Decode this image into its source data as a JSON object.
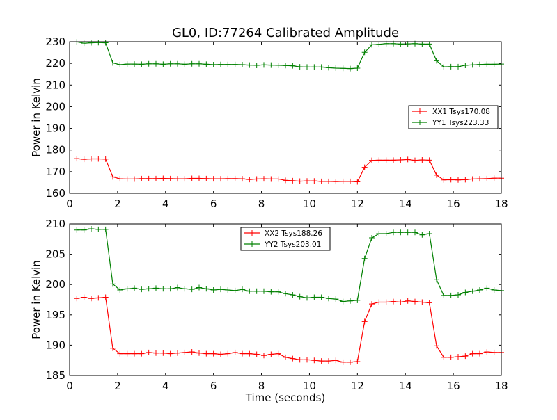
{
  "title": "GL0, ID:77264 Calibrated Amplitude",
  "colors": {
    "red": "#ff0000",
    "green": "#008000"
  },
  "chart_data": [
    {
      "type": "line",
      "ylabel": "Power in Kelvin",
      "xlabel": "",
      "xlim": [
        0,
        18
      ],
      "ylim": [
        160,
        230
      ],
      "xticks": [
        0,
        2,
        4,
        6,
        8,
        10,
        12,
        14,
        16,
        18
      ],
      "yticks": [
        160,
        170,
        180,
        190,
        200,
        210,
        220,
        230
      ],
      "grid": false,
      "legend": "right",
      "x": [
        0.3,
        0.6,
        0.9,
        1.2,
        1.5,
        1.8,
        2.1,
        2.4,
        2.7,
        3.0,
        3.3,
        3.6,
        3.9,
        4.2,
        4.5,
        4.8,
        5.1,
        5.4,
        5.7,
        6.0,
        6.3,
        6.6,
        6.9,
        7.2,
        7.5,
        7.8,
        8.1,
        8.4,
        8.7,
        9.0,
        9.3,
        9.6,
        9.9,
        10.2,
        10.5,
        10.8,
        11.1,
        11.4,
        11.7,
        12.0,
        12.3,
        12.6,
        12.9,
        13.2,
        13.5,
        13.8,
        14.1,
        14.4,
        14.7,
        15.0,
        15.3,
        15.6,
        15.9,
        16.2,
        16.5,
        16.8,
        17.1,
        17.4,
        17.7,
        18.0
      ],
      "series": [
        {
          "name": "XX1 Tsys170.08",
          "color": "#ff0000",
          "values": [
            176.0,
            175.7,
            175.9,
            175.9,
            175.8,
            167.6,
            166.7,
            166.6,
            166.6,
            166.8,
            166.8,
            166.8,
            166.9,
            166.8,
            166.7,
            166.7,
            166.9,
            166.9,
            166.8,
            166.7,
            166.7,
            166.8,
            166.8,
            166.7,
            166.4,
            166.6,
            166.7,
            166.6,
            166.6,
            166.0,
            165.8,
            165.6,
            165.7,
            165.7,
            165.5,
            165.5,
            165.4,
            165.5,
            165.5,
            165.3,
            172.0,
            175.2,
            175.3,
            175.3,
            175.3,
            175.4,
            175.6,
            175.2,
            175.4,
            175.3,
            168.4,
            166.2,
            166.3,
            166.2,
            166.3,
            166.6,
            166.7,
            166.8,
            167.0,
            167.0
          ]
        },
        {
          "name": "YY1 Tsys223.33",
          "color": "#008000",
          "values": [
            229.9,
            229.3,
            229.5,
            229.6,
            229.5,
            220.2,
            219.4,
            219.7,
            219.7,
            219.6,
            219.8,
            219.8,
            219.6,
            219.8,
            219.8,
            219.6,
            219.8,
            219.8,
            219.6,
            219.4,
            219.5,
            219.5,
            219.5,
            219.4,
            219.2,
            219.1,
            219.3,
            219.2,
            219.1,
            219.0,
            218.9,
            218.4,
            218.3,
            218.3,
            218.3,
            218.0,
            217.8,
            217.7,
            217.6,
            217.8,
            225.1,
            228.6,
            228.8,
            229.1,
            229.1,
            228.9,
            229.0,
            229.1,
            228.9,
            228.9,
            221.2,
            218.4,
            218.5,
            218.5,
            219.1,
            219.3,
            219.5,
            219.6,
            219.6,
            219.7
          ]
        }
      ]
    },
    {
      "type": "line",
      "ylabel": "Power in Kelvin",
      "xlabel": "Time (seconds)",
      "xlim": [
        0,
        18
      ],
      "ylim": [
        185,
        210
      ],
      "xticks": [
        0,
        2,
        4,
        6,
        8,
        10,
        12,
        14,
        16,
        18
      ],
      "yticks": [
        185,
        190,
        195,
        200,
        205,
        210
      ],
      "grid": false,
      "legend": "top-center",
      "x": [
        0.3,
        0.6,
        0.9,
        1.2,
        1.5,
        1.8,
        2.1,
        2.4,
        2.7,
        3.0,
        3.3,
        3.6,
        3.9,
        4.2,
        4.5,
        4.8,
        5.1,
        5.4,
        5.7,
        6.0,
        6.3,
        6.6,
        6.9,
        7.2,
        7.5,
        7.8,
        8.1,
        8.4,
        8.7,
        9.0,
        9.3,
        9.6,
        9.9,
        10.2,
        10.5,
        10.8,
        11.1,
        11.4,
        11.7,
        12.0,
        12.3,
        12.6,
        12.9,
        13.2,
        13.5,
        13.8,
        14.1,
        14.4,
        14.7,
        15.0,
        15.3,
        15.6,
        15.9,
        16.2,
        16.5,
        16.8,
        17.1,
        17.4,
        17.7,
        18.0
      ],
      "series": [
        {
          "name": "XX2 Tsys188.26",
          "color": "#ff0000",
          "values": [
            197.7,
            197.9,
            197.7,
            197.8,
            197.9,
            189.5,
            188.6,
            188.6,
            188.6,
            188.6,
            188.8,
            188.7,
            188.7,
            188.6,
            188.7,
            188.8,
            188.9,
            188.7,
            188.6,
            188.6,
            188.5,
            188.6,
            188.8,
            188.6,
            188.6,
            188.5,
            188.3,
            188.5,
            188.6,
            188.0,
            187.8,
            187.6,
            187.6,
            187.5,
            187.4,
            187.4,
            187.5,
            187.2,
            187.2,
            187.3,
            193.9,
            196.8,
            197.1,
            197.1,
            197.2,
            197.1,
            197.3,
            197.2,
            197.1,
            197.0,
            189.9,
            188.0,
            188.0,
            188.1,
            188.2,
            188.6,
            188.6,
            188.9,
            188.8,
            188.8
          ]
        },
        {
          "name": "YY2 Tsys203.01",
          "color": "#008000",
          "values": [
            209.0,
            209.0,
            209.2,
            209.1,
            209.1,
            200.1,
            199.1,
            199.3,
            199.4,
            199.2,
            199.3,
            199.4,
            199.3,
            199.3,
            199.5,
            199.3,
            199.2,
            199.5,
            199.3,
            199.1,
            199.2,
            199.1,
            199.0,
            199.2,
            198.9,
            198.9,
            198.9,
            198.8,
            198.8,
            198.5,
            198.3,
            198.0,
            197.8,
            197.9,
            197.9,
            197.7,
            197.6,
            197.2,
            197.3,
            197.4,
            204.3,
            207.7,
            208.4,
            208.4,
            208.6,
            208.6,
            208.6,
            208.6,
            208.2,
            208.4,
            200.8,
            198.2,
            198.2,
            198.3,
            198.7,
            198.9,
            199.1,
            199.4,
            199.1,
            199.0
          ]
        }
      ]
    }
  ]
}
